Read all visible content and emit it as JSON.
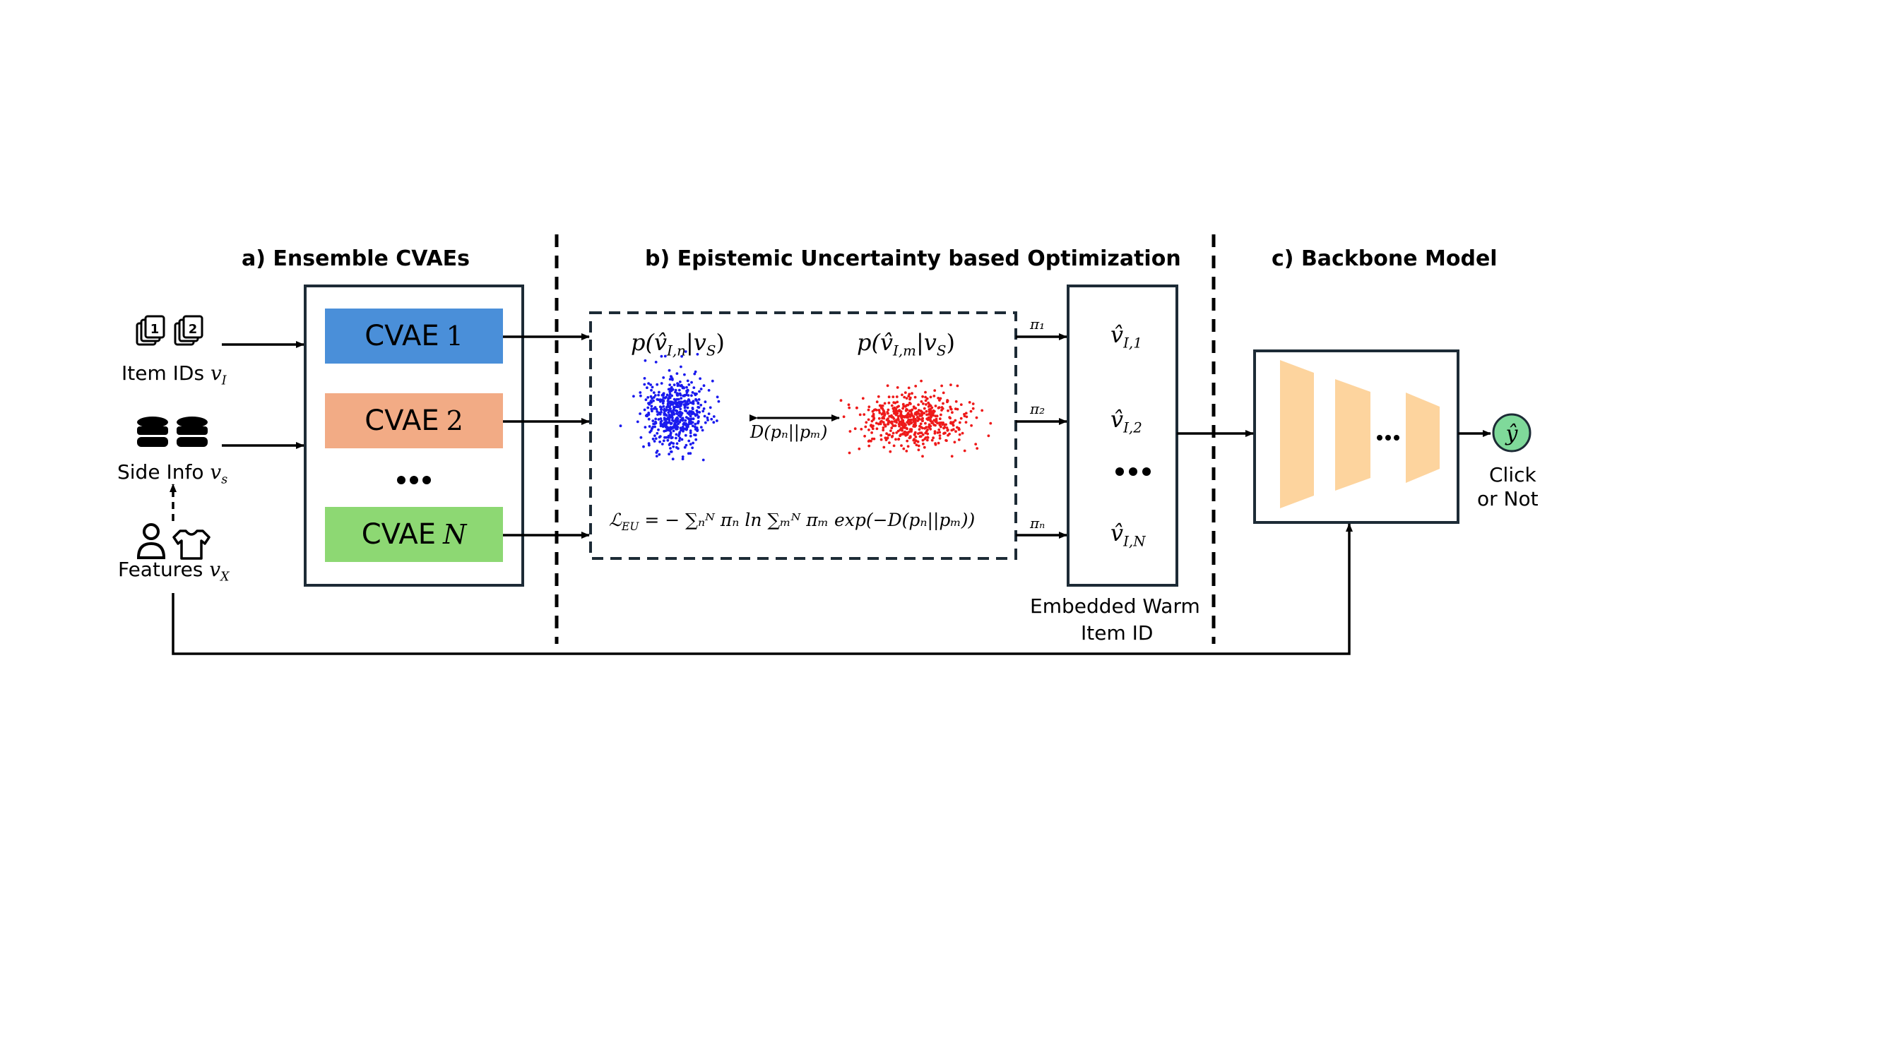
{
  "sections": {
    "a": "a) Ensemble CVAEs",
    "b": "b) Epistemic Uncertainty based Optimization",
    "c": "c) Backbone Model"
  },
  "inputs": {
    "item_ids": {
      "text": "Item IDs",
      "symbol": "v",
      "sub": "I",
      "icon": "stacked-numbered-cards-icon",
      "badges": [
        "1",
        "2"
      ]
    },
    "side_info": {
      "text": "Side Info",
      "symbol": "v",
      "sub": "s",
      "icon": "database-icon"
    },
    "features": {
      "text": "Features",
      "symbol": "v",
      "sub": "X",
      "icons": [
        "user-icon",
        "shirt-icon"
      ]
    }
  },
  "cvaes": [
    {
      "label": "CVAE",
      "index": "1",
      "color": "#4a8fd9"
    },
    {
      "label": "CVAE",
      "index": "2",
      "color": "#f2ab85"
    },
    {
      "label": "CVAE",
      "index": "N",
      "color": "#8dd873"
    }
  ],
  "ensemble_ellipsis": "•••",
  "distributions": {
    "left": {
      "prefix": "p(",
      "hat": "v̂",
      "sub": "I,n",
      "given": "|v",
      "given_sub": "S",
      "suffix": ")",
      "color": "#1a1aee"
    },
    "right": {
      "prefix": "p(",
      "hat": "v̂",
      "sub": "I,m",
      "given": "|v",
      "given_sub": "S",
      "suffix": ")",
      "color": "#ee1a1a"
    }
  },
  "divergence": "D(pₙ||pₘ)",
  "loss": {
    "lhs": "ℒ",
    "lhs_sub": "EU",
    "rhs": " = − ∑ₙᴺ πₙ ln ∑ₘᴺ πₘ exp(−D(pₙ||pₘ))"
  },
  "weights": [
    "π₁",
    "π₂",
    "πₙ"
  ],
  "warm_ids": [
    {
      "hat": "v̂",
      "sub": "I,1"
    },
    {
      "hat": "v̂",
      "sub": "I,2"
    },
    {
      "hat": "v̂",
      "sub": "I,N"
    }
  ],
  "warm_ellipsis": "•••",
  "warm_caption": [
    "Embedded Warm",
    "Item ID"
  ],
  "backbone": {
    "ellipsis": "•••",
    "layer_color": "#fdd49e"
  },
  "output": {
    "symbol": "ŷ",
    "color": "#7fd99a",
    "caption": [
      "Click",
      "or Not"
    ]
  }
}
